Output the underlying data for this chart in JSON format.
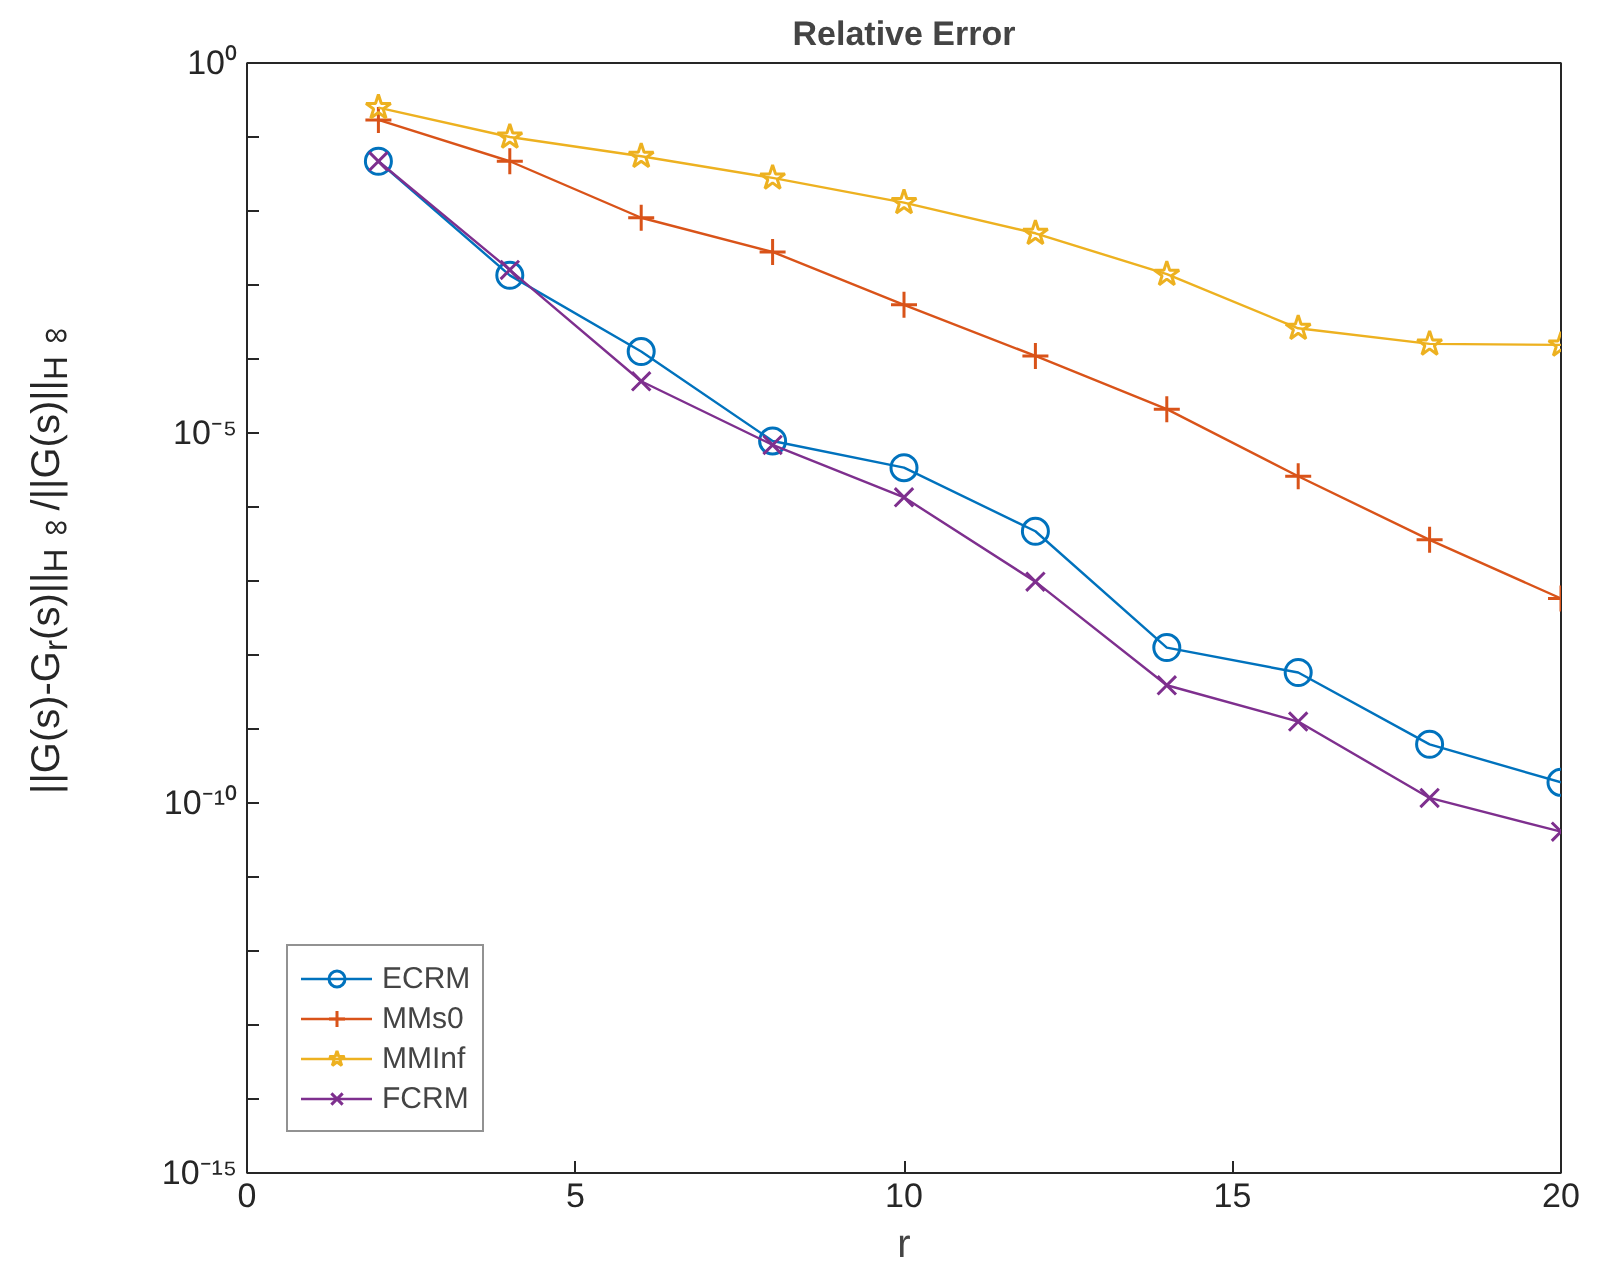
{
  "chart_data": {
    "type": "line",
    "title": "Relative Error",
    "xlabel": "r",
    "ylabel": "||G(s)-G$_{r}$(s)||$_{H∞}$/||G(s)||$_{H∞}$",
    "x": [
      2,
      4,
      6,
      8,
      10,
      12,
      14,
      16,
      18,
      20
    ],
    "series": [
      {
        "name": "ECRM",
        "color": "#0072bd",
        "marker": "circle",
        "values": [
          0.047,
          0.00135,
          0.000126,
          7.8e-06,
          3.4e-06,
          4.7e-07,
          1.26e-08,
          5.8e-09,
          6.2e-10,
          1.9e-10
        ]
      },
      {
        "name": "MMs0",
        "color": "#d95319",
        "marker": "cross",
        "values": [
          0.17,
          0.047,
          0.0081,
          0.0028,
          0.00054,
          0.00011,
          2.1e-05,
          2.6e-06,
          3.6e-07,
          5.8e-08
        ]
      },
      {
        "name": "MMInf",
        "color": "#edb120",
        "marker": "star",
        "values": [
          0.25,
          0.1,
          0.055,
          0.028,
          0.013,
          0.005,
          0.0014,
          0.00026,
          0.00016,
          0.000155
        ]
      },
      {
        "name": "FCRM",
        "color": "#7e2f8e",
        "marker": "x",
        "values": [
          0.047,
          0.0016,
          5e-05,
          6.9e-06,
          1.35e-06,
          9.8e-08,
          3.9e-09,
          1.26e-09,
          1.17e-10,
          4.1e-11
        ]
      }
    ],
    "xlim": [
      0,
      20
    ],
    "xticks": [
      0,
      5,
      10,
      15,
      20
    ],
    "ylim": [
      1e-15,
      1
    ],
    "log": "y",
    "yticks": [
      {
        "value": 1e-15,
        "label": "10⁻¹⁵"
      },
      {
        "value": 1e-14,
        "label": null
      },
      {
        "value": 1e-13,
        "label": null
      },
      {
        "value": 1e-12,
        "label": null
      },
      {
        "value": 1e-11,
        "label": null
      },
      {
        "value": 1e-10,
        "label": "10⁻¹⁰"
      },
      {
        "value": 1e-09,
        "label": null
      },
      {
        "value": 1e-08,
        "label": null
      },
      {
        "value": 1e-07,
        "label": null
      },
      {
        "value": 1e-06,
        "label": null
      },
      {
        "value": 1e-05,
        "label": "10⁻⁵"
      },
      {
        "value": 0.0001,
        "label": null
      },
      {
        "value": 0.001,
        "label": null
      },
      {
        "value": 0.01,
        "label": null
      },
      {
        "value": 0.1,
        "label": null
      },
      {
        "value": 1,
        "label": "10⁰"
      }
    ],
    "grid": false,
    "legend": "bottom left",
    "line_style": "solid"
  }
}
